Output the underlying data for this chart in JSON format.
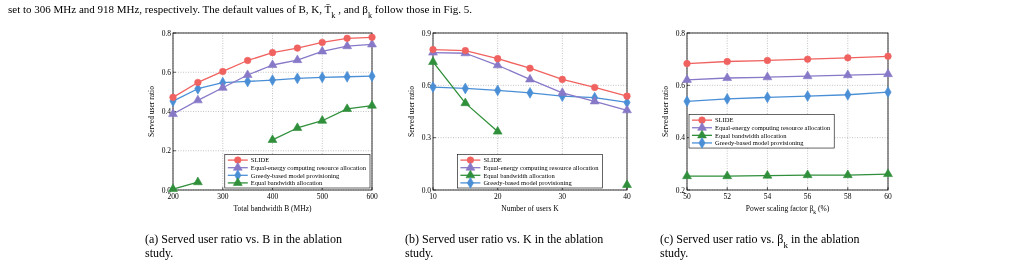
{
  "chart_data": [
    {
      "type": "line",
      "xlabel": "Total bandwidth B (MHz)",
      "ylabel": "Served user ratio",
      "x": [
        200,
        250,
        300,
        350,
        400,
        450,
        500,
        550,
        600
      ],
      "xlim": [
        200,
        600
      ],
      "xticks": [
        200,
        300,
        400,
        500,
        600
      ],
      "ylim": [
        0,
        0.8
      ],
      "yticks": [
        {
          "value": 0,
          "label": "0.0"
        },
        0.2,
        0.4,
        0.6,
        0.8
      ],
      "grid": true,
      "legend": "bottom right",
      "line_style": "solid",
      "series": [
        {
          "name": "SLIDE",
          "color": "#f0625f",
          "marker": "circle",
          "values": [
            0.472,
            0.548,
            0.604,
            0.66,
            0.7,
            0.723,
            0.752,
            0.773,
            0.778
          ]
        },
        {
          "name": "Equal-energy computing resource allocation",
          "color": "#8878c8",
          "marker": "triangle",
          "values": [
            0.387,
            0.457,
            0.521,
            0.586,
            0.637,
            0.662,
            0.706,
            0.733,
            0.742
          ]
        },
        {
          "name": "Greedy-based model provisioning",
          "color": "#4a8fd6",
          "marker": "diamond",
          "values": [
            0.453,
            0.516,
            0.547,
            0.553,
            0.56,
            0.569,
            0.574,
            0.577,
            0.58
          ]
        },
        {
          "name": "Equal bandwidth allocation",
          "color": "#2f8f3a",
          "marker": "triangle",
          "values": [
            0.005,
            0.04,
            null,
            null,
            0.255,
            0.316,
            0.353,
            0.413,
            0.43
          ]
        }
      ],
      "annotations": [
        "set to 306 MHz and 918 MHz, respectively. The default values of B, K, T̄$_{k}$, and β$_{k}$ follow those in Fig. 5.",
        "(a) Served user ratio vs. B in the ablation study."
      ]
    },
    {
      "type": "line",
      "xlabel": "Number of users K",
      "ylabel": "Served user ratio",
      "x": [
        10,
        15,
        20,
        25,
        30,
        35,
        40
      ],
      "xlim": [
        10,
        40
      ],
      "xticks": [
        10,
        20,
        30,
        40
      ],
      "ylim": [
        0,
        0.9
      ],
      "yticks": [
        {
          "value": 0,
          "label": "0.0"
        },
        0.3,
        0.6,
        0.9
      ],
      "grid": true,
      "legend": "bottom",
      "line_style": "solid",
      "series": [
        {
          "name": "SLIDE",
          "color": "#f0625f",
          "marker": "circle",
          "values": [
            0.805,
            0.799,
            0.753,
            0.698,
            0.634,
            0.588,
            0.538
          ]
        },
        {
          "name": "Equal-energy computing resource allocation",
          "color": "#8878c8",
          "marker": "triangle",
          "values": [
            0.788,
            0.784,
            0.715,
            0.634,
            0.557,
            0.508,
            0.457
          ]
        },
        {
          "name": "Equal bandwidth allocation",
          "color": "#2f8f3a",
          "marker": "triangle",
          "values": [
            0.734,
            0.498,
            0.335,
            null,
            null,
            null,
            0.029
          ]
        },
        {
          "name": "Greedy-based model provisioning",
          "color": "#4a8fd6",
          "marker": "diamond",
          "values": [
            0.59,
            0.582,
            0.571,
            0.557,
            0.538,
            0.529,
            0.502
          ]
        }
      ],
      "annotations": [
        "(b) Served user ratio vs. K in the ablation study."
      ]
    },
    {
      "type": "line",
      "xlabel": "Power scaling factor β$_{k}$ (%)",
      "ylabel": "Served user ratio",
      "x": [
        50,
        52,
        54,
        56,
        58,
        60
      ],
      "xlim": [
        50,
        60
      ],
      "xticks": [
        50,
        52,
        54,
        56,
        58,
        60
      ],
      "ylim": [
        0.2,
        0.8
      ],
      "yticks": [
        0.2,
        0.4,
        0.6,
        0.8
      ],
      "grid": true,
      "legend": "left",
      "line_style": "solid",
      "series": [
        {
          "name": "SLIDE",
          "color": "#f0625f",
          "marker": "circle",
          "values": [
            0.683,
            0.691,
            0.695,
            0.7,
            0.705,
            0.711
          ]
        },
        {
          "name": "Equal-energy computing resource allocation",
          "color": "#8878c8",
          "marker": "triangle",
          "values": [
            0.621,
            0.628,
            0.631,
            0.635,
            0.639,
            0.643
          ]
        },
        {
          "name": "Equal bandwidth allocation",
          "color": "#2f8f3a",
          "marker": "triangle",
          "values": [
            0.253,
            0.253,
            0.255,
            0.257,
            0.257,
            0.261
          ]
        },
        {
          "name": "Greedy-based model provisioning",
          "color": "#4a8fd6",
          "marker": "diamond",
          "values": [
            0.539,
            0.548,
            0.554,
            0.559,
            0.564,
            0.574
          ]
        }
      ],
      "annotations": [
        "(c) Served user ratio vs. β$_{k}$ in the ablation study."
      ]
    }
  ]
}
